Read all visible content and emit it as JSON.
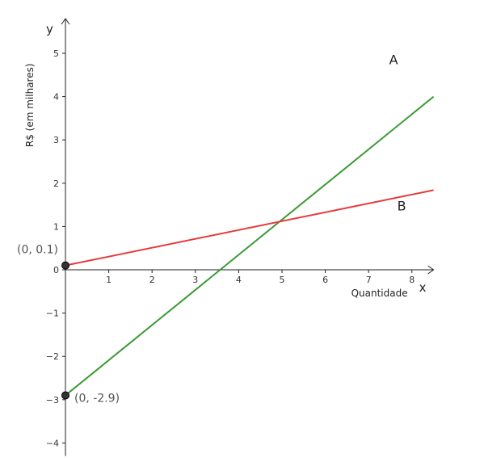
{
  "chart_data": {
    "type": "line",
    "xlabel": "Quantidade",
    "ylabel": "R$ (em milhares)",
    "x_axis_name": "x",
    "y_axis_name": "y",
    "xlim": [
      0,
      8.5
    ],
    "ylim": [
      -4.3,
      5.8
    ],
    "x_ticks": [
      "1",
      "2",
      "3",
      "4",
      "5",
      "6",
      "7",
      "8"
    ],
    "y_ticks": [
      "5",
      "4",
      "3",
      "2",
      "1",
      "0",
      "−1",
      "−2",
      "−3",
      "−4"
    ],
    "grid": false,
    "series": [
      {
        "name": "A",
        "color": "#3a9a35",
        "x": [
          0,
          8.5
        ],
        "y": [
          -2.9,
          4.0
        ]
      },
      {
        "name": "B",
        "color": "#e63a3a",
        "x": [
          0,
          8.5
        ],
        "y": [
          0.1,
          1.84
        ]
      }
    ],
    "points": [
      {
        "label": "(0, 0.1)",
        "x": 0,
        "y": 0.1
      },
      {
        "label": "(0, -2.9)",
        "x": 0,
        "y": -2.9
      }
    ]
  }
}
